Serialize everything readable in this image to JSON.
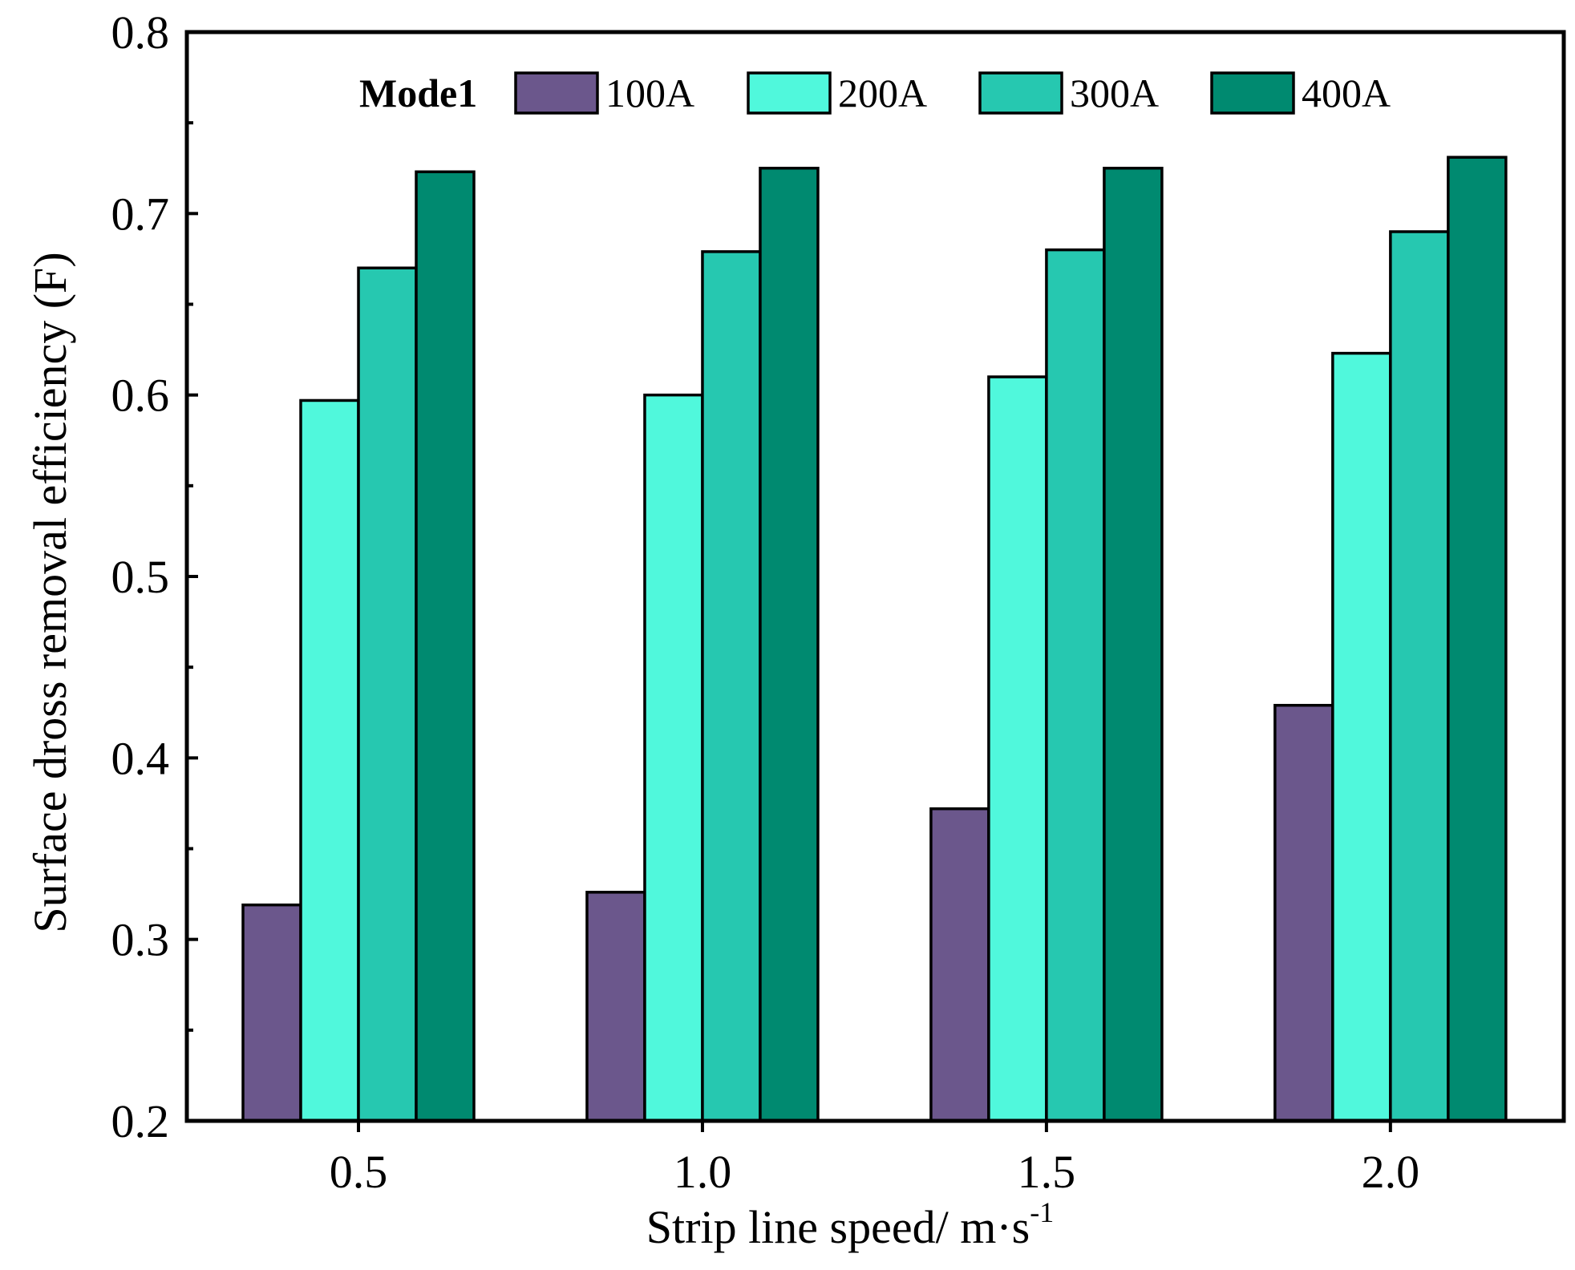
{
  "chart_data": {
    "type": "bar",
    "categories": [
      "0.5",
      "1.0",
      "1.5",
      "2.0"
    ],
    "series": [
      {
        "name": "100A",
        "values": [
          0.319,
          0.326,
          0.372,
          0.429
        ],
        "color": "#6b578c"
      },
      {
        "name": "200A",
        "values": [
          0.597,
          0.6,
          0.61,
          0.623
        ],
        "color": "#50f8dc"
      },
      {
        "name": "300A",
        "values": [
          0.67,
          0.679,
          0.68,
          0.69
        ],
        "color": "#26c8b0"
      },
      {
        "name": "400A",
        "values": [
          0.723,
          0.725,
          0.725,
          0.731
        ],
        "color": "#008a70"
      }
    ],
    "ylim": [
      0.2,
      0.8
    ],
    "yticks": [
      "0.2",
      "0.3",
      "0.4",
      "0.5",
      "0.6",
      "0.7",
      "0.8"
    ],
    "xlabel_main": "Strip line speed/ m·s",
    "xlabel_sup": "-1",
    "ylabel": "Surface dross removal efficiency (F)",
    "legend_title": "Mode1",
    "legend_position": "top",
    "grid": false
  }
}
